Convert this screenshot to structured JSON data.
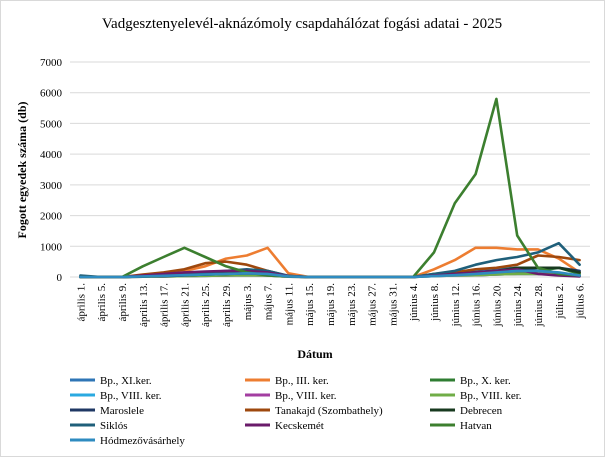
{
  "chart_data": {
    "type": "line",
    "title": "Vadgesztenyelevél-aknázómoly csapdahálózat fogási adatai - 2025",
    "xlabel": "Dátum",
    "ylabel": "Fogott egyedek száma (db)",
    "ylim": [
      0,
      7000
    ],
    "yticks": [
      0,
      1000,
      2000,
      3000,
      4000,
      5000,
      6000,
      7000
    ],
    "grid": true,
    "legend_position": "bottom",
    "categories": [
      "április 1.",
      "április 5.",
      "április 9.",
      "április 13.",
      "április 17.",
      "április 21.",
      "április 25.",
      "április 29.",
      "május 3.",
      "május 7.",
      "május 11.",
      "május 15.",
      "május 19.",
      "május 23.",
      "május 27.",
      "május 31.",
      "június 4.",
      "június 8.",
      "június 12.",
      "június 16.",
      "június 20.",
      "június 24.",
      "június 28.",
      "július 2.",
      "július 6."
    ],
    "series": [
      {
        "name": "Bp., XI.ker.",
        "color": "#2e75b6",
        "values": [
          0,
          0,
          0,
          20,
          40,
          60,
          80,
          150,
          200,
          120,
          20,
          0,
          0,
          0,
          0,
          0,
          0,
          80,
          150,
          200,
          250,
          300,
          200,
          100,
          50
        ]
      },
      {
        "name": "Bp., III. ker.",
        "color": "#ed7d31",
        "values": [
          0,
          0,
          0,
          50,
          100,
          200,
          350,
          600,
          700,
          950,
          120,
          0,
          0,
          0,
          0,
          0,
          0,
          250,
          550,
          950,
          950,
          900,
          900,
          600,
          150
        ]
      },
      {
        "name": "Bp., X. ker.",
        "color": "#2f7d32",
        "values": [
          0,
          0,
          0,
          20,
          30,
          50,
          100,
          150,
          150,
          150,
          20,
          0,
          0,
          0,
          0,
          0,
          0,
          100,
          150,
          150,
          150,
          150,
          200,
          300,
          100
        ]
      },
      {
        "name": "Bp., VIII. ker.",
        "color": "#2aa9e0",
        "values": [
          0,
          0,
          0,
          10,
          20,
          30,
          40,
          50,
          60,
          50,
          10,
          0,
          0,
          0,
          0,
          0,
          0,
          30,
          50,
          60,
          80,
          100,
          100,
          80,
          30
        ]
      },
      {
        "name": "Bp., VIII. ker.",
        "color": "#a33ea1",
        "values": [
          0,
          0,
          0,
          10,
          20,
          30,
          40,
          50,
          60,
          50,
          10,
          0,
          0,
          0,
          0,
          0,
          0,
          30,
          50,
          60,
          80,
          100,
          100,
          80,
          30
        ]
      },
      {
        "name": "Bp., VIII. ker.",
        "color": "#70ad47",
        "values": [
          0,
          0,
          0,
          10,
          20,
          30,
          40,
          50,
          60,
          50,
          10,
          0,
          0,
          0,
          0,
          0,
          0,
          30,
          50,
          60,
          80,
          100,
          100,
          80,
          30
        ]
      },
      {
        "name": "Maroslele",
        "color": "#1f3864",
        "values": [
          0,
          0,
          0,
          20,
          30,
          50,
          80,
          100,
          120,
          100,
          20,
          0,
          0,
          0,
          0,
          0,
          0,
          50,
          100,
          150,
          200,
          250,
          300,
          300,
          200
        ]
      },
      {
        "name": "Tanakajd (Szombathely)",
        "color": "#9e480e",
        "values": [
          0,
          0,
          0,
          80,
          150,
          250,
          450,
          500,
          400,
          200,
          30,
          0,
          0,
          0,
          0,
          0,
          0,
          80,
          150,
          250,
          300,
          400,
          700,
          650,
          550
        ]
      },
      {
        "name": "Debrecen",
        "color": "#183a1f",
        "values": [
          0,
          0,
          0,
          20,
          40,
          60,
          80,
          100,
          150,
          150,
          30,
          0,
          0,
          0,
          0,
          0,
          0,
          50,
          100,
          150,
          200,
          300,
          300,
          300,
          150
        ]
      },
      {
        "name": "Siklós",
        "color": "#1f5f7a",
        "values": [
          50,
          0,
          0,
          30,
          60,
          100,
          150,
          200,
          250,
          200,
          40,
          0,
          0,
          0,
          0,
          0,
          0,
          100,
          200,
          400,
          550,
          650,
          800,
          1100,
          400
        ]
      },
      {
        "name": "Kecskemét",
        "color": "#6a1b6a",
        "values": [
          0,
          0,
          0,
          50,
          100,
          150,
          180,
          200,
          200,
          150,
          30,
          0,
          0,
          0,
          0,
          0,
          0,
          50,
          100,
          150,
          200,
          250,
          100,
          50,
          20
        ]
      },
      {
        "name": "Hatvan",
        "color": "#3c7f2f",
        "values": [
          0,
          0,
          0,
          350,
          650,
          950,
          650,
          350,
          150,
          50,
          20,
          0,
          0,
          0,
          0,
          0,
          0,
          800,
          2400,
          3350,
          5800,
          1350,
          300,
          100,
          50
        ]
      },
      {
        "name": "Hódmezővásárhely",
        "color": "#2e8bc0",
        "values": [
          0,
          0,
          0,
          20,
          40,
          60,
          80,
          100,
          120,
          100,
          20,
          0,
          0,
          0,
          0,
          0,
          0,
          30,
          60,
          100,
          150,
          200,
          200,
          150,
          50
        ]
      }
    ]
  }
}
